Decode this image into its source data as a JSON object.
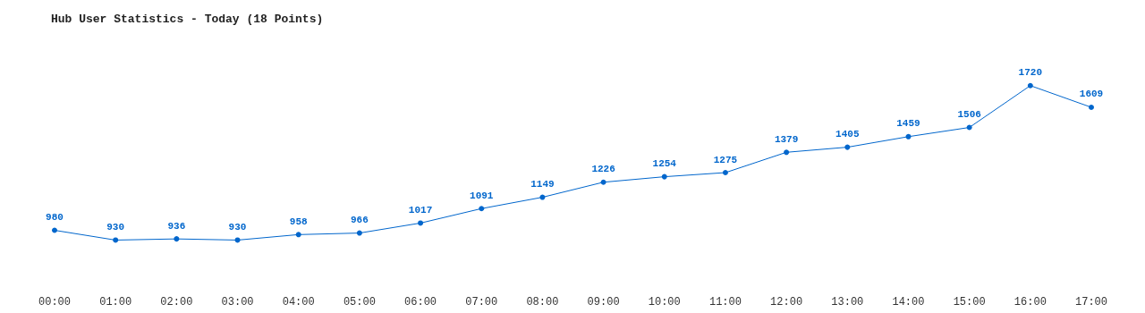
{
  "chart_data": {
    "type": "line",
    "title": "Hub User Statistics - Today (18 Points)",
    "categories": [
      "00:00",
      "01:00",
      "02:00",
      "03:00",
      "04:00",
      "05:00",
      "06:00",
      "07:00",
      "08:00",
      "09:00",
      "10:00",
      "11:00",
      "12:00",
      "13:00",
      "14:00",
      "15:00",
      "16:00",
      "17:00"
    ],
    "series": [
      {
        "color": "#0066cc",
        "values": [
          980,
          930,
          936,
          930,
          958,
          966,
          1017,
          1091,
          1149,
          1226,
          1254,
          1275,
          1379,
          1405,
          1459,
          1506,
          1720,
          1609
        ]
      }
    ],
    "data_labels": true,
    "marker": "circle",
    "line_style": "solid",
    "tick_labels": "x"
  }
}
